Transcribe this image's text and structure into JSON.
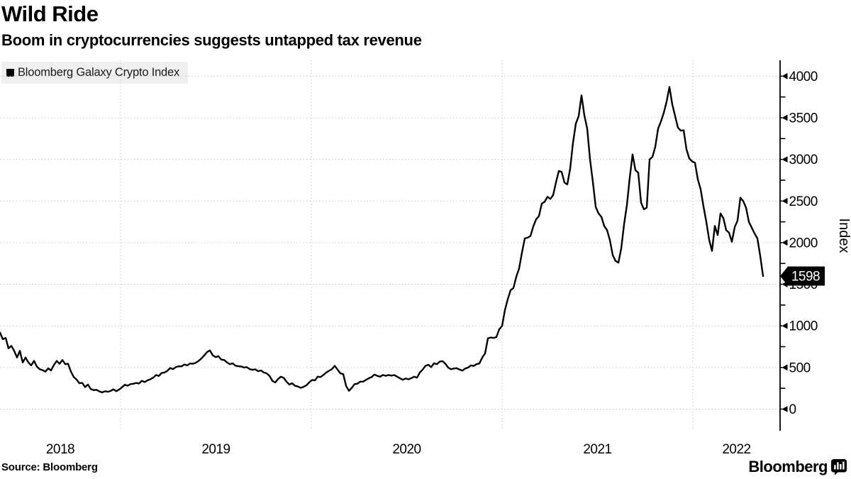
{
  "header": {
    "title": "Wild Ride",
    "subtitle": "Boom in cryptocurrencies suggests untapped tax revenue"
  },
  "legend": {
    "label": "Bloomberg Galaxy Crypto Index"
  },
  "footer": {
    "source": "Source: Bloomberg",
    "brand": "Bloomberg"
  },
  "chart_data": {
    "type": "line",
    "title": "Wild Ride",
    "subtitle": "Boom in cryptocurrencies suggests untapped tax revenue",
    "ylabel": "Index",
    "y_ticks": [
      0,
      500,
      1000,
      1500,
      2000,
      2500,
      3000,
      3500,
      4000
    ],
    "y_minor_ticks": [
      250,
      750,
      1250,
      1750,
      2250,
      2750,
      3250,
      3750
    ],
    "ylim": [
      -60,
      4250
    ],
    "x_labels": [
      "2018",
      "2019",
      "2020",
      "2021",
      "2022"
    ],
    "x_gridline_years": [
      2019,
      2020,
      2021,
      2022
    ],
    "x_range_years": [
      2018.37,
      2022.37
    ],
    "grid": "dashed",
    "legend_position": "top-left",
    "last_value": 1598,
    "last_value_label": "1598",
    "colors": {
      "line": "#000000",
      "grid": "#c6c6c6",
      "axis": "#000000",
      "tag_bg": "#000000",
      "tag_fg": "#ffffff"
    },
    "series": [
      {
        "name": "Bloomberg Galaxy Crypto Index",
        "color": "#000000",
        "values": [
          920,
          840,
          855,
          730,
          760,
          700,
          620,
          700,
          560,
          620,
          560,
          525,
          580,
          510,
          480,
          468,
          450,
          490,
          465,
          530,
          579,
          545,
          590,
          540,
          545,
          451,
          385,
          355,
          310,
          315,
          264,
          295,
          240,
          228,
          232,
          213,
          200,
          215,
          208,
          218,
          238,
          215,
          235,
          262,
          292,
          281,
          300,
          304,
          315,
          308,
          340,
          325,
          345,
          358,
          378,
          409,
          398,
          435,
          440,
          460,
          494,
          480,
          505,
          515,
          513,
          536,
          525,
          548,
          545,
          556,
          579,
          608,
          645,
          685,
          705,
          647,
          625,
          635,
          595,
          590,
          562,
          540,
          550,
          522,
          515,
          512,
          500,
          505,
          480,
          472,
          477,
          455,
          465,
          440,
          430,
          400,
          340,
          320,
          360,
          390,
          375,
          330,
          295,
          310,
          280,
          272,
          255,
          268,
          286,
          320,
          350,
          345,
          390,
          385,
          410,
          439,
          460,
          480,
          520,
          475,
          430,
          420,
          280,
          220,
          255,
          300,
          305,
          330,
          330,
          350,
          370,
          385,
          415,
          400,
          390,
          410,
          400,
          410,
          402,
          408,
          390,
          370,
          352,
          368,
          358,
          372,
          390,
          378,
          440,
          475,
          520,
          533,
          505,
          550,
          540,
          570,
          576,
          545,
          499,
          478,
          488,
          492,
          475,
          462,
          488,
          499,
          525,
          518,
          540,
          548,
          618,
          669,
          850,
          860,
          855,
          865,
          959,
          1000,
          1190,
          1320,
          1430,
          1454,
          1590,
          1690,
          1880,
          2050,
          2060,
          2080,
          2195,
          2280,
          2320,
          2469,
          2490,
          2550,
          2525,
          2570,
          2725,
          2860,
          2850,
          2720,
          2700,
          2890,
          3200,
          3430,
          3520,
          3770,
          3530,
          3370,
          3000,
          2730,
          2430,
          2350,
          2310,
          2200,
          2150,
          2030,
          1850,
          1780,
          1760,
          1930,
          2220,
          2450,
          2780,
          3060,
          2870,
          2840,
          2480,
          2400,
          2420,
          3000,
          3030,
          3150,
          3370,
          3455,
          3560,
          3694,
          3870,
          3660,
          3520,
          3380,
          3345,
          3350,
          3120,
          3010,
          2975,
          2960,
          2760,
          2640,
          2434,
          2250,
          2034,
          1900,
          2200,
          2090,
          2350,
          2294,
          2150,
          2120,
          2010,
          2185,
          2265,
          2540,
          2500,
          2420,
          2250,
          2180,
          2110,
          2050,
          1840,
          1598
        ]
      }
    ]
  }
}
